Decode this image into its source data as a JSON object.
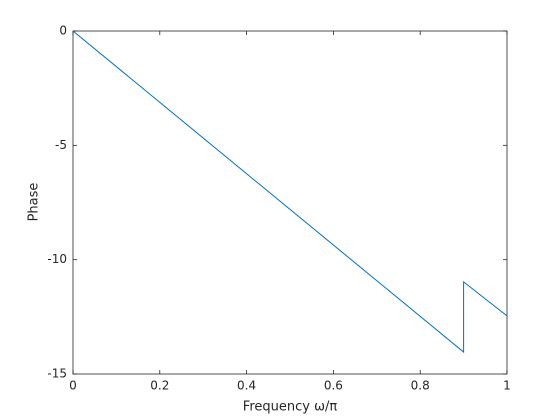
{
  "chart_data": {
    "type": "line",
    "xlabel": "Frequency ω/π",
    "ylabel": "Phase",
    "x": [
      0,
      0.9,
      0.9,
      1
    ],
    "series": [
      {
        "name": "Phase",
        "color": "#0072bd",
        "values": [
          0,
          -14.04,
          -10.97,
          -12.46
        ]
      }
    ],
    "xlim": [
      0,
      1
    ],
    "xticks": [
      0,
      0.2,
      0.4,
      0.6,
      0.8,
      1
    ],
    "ylim": [
      -15,
      0
    ],
    "yticks": [
      -15,
      -10,
      -5,
      0
    ],
    "grid": false
  }
}
